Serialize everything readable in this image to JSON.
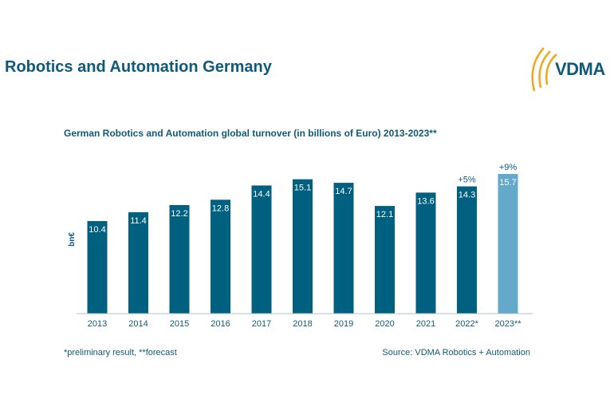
{
  "header": {
    "title": "Robotics and Automation Germany",
    "logo_text": "VDMA"
  },
  "footer": {
    "note": "*preliminary result, **forecast",
    "source": "Source: VDMA Robotics + Automation"
  },
  "chart_data": {
    "type": "bar",
    "title": "German Robotics and Automation global turnover (in billions of Euro) 2013-2023**",
    "xlabel": "",
    "ylabel": "bn€",
    "ylim": [
      0,
      16
    ],
    "grid": false,
    "categories": [
      "2013",
      "2014",
      "2015",
      "2016",
      "2017",
      "2018",
      "2019",
      "2020",
      "2021",
      "2022*",
      "2023**"
    ],
    "values": [
      10.4,
      11.4,
      12.2,
      12.8,
      14.4,
      15.1,
      14.7,
      12.1,
      13.6,
      14.3,
      15.7
    ],
    "labels": [
      "10.4",
      "11.4",
      "12.2",
      "12.8",
      "14.4",
      "15.1",
      "14.7",
      "12.1",
      "13.6",
      "14.3",
      "15.7"
    ],
    "annotations": [
      {
        "category": "2022*",
        "text": "+5%"
      },
      {
        "category": "2023**",
        "text": "+9%"
      }
    ],
    "colors": {
      "actual": "#00607f",
      "forecast": "#64a9c9",
      "text": "#0e5a78"
    }
  }
}
